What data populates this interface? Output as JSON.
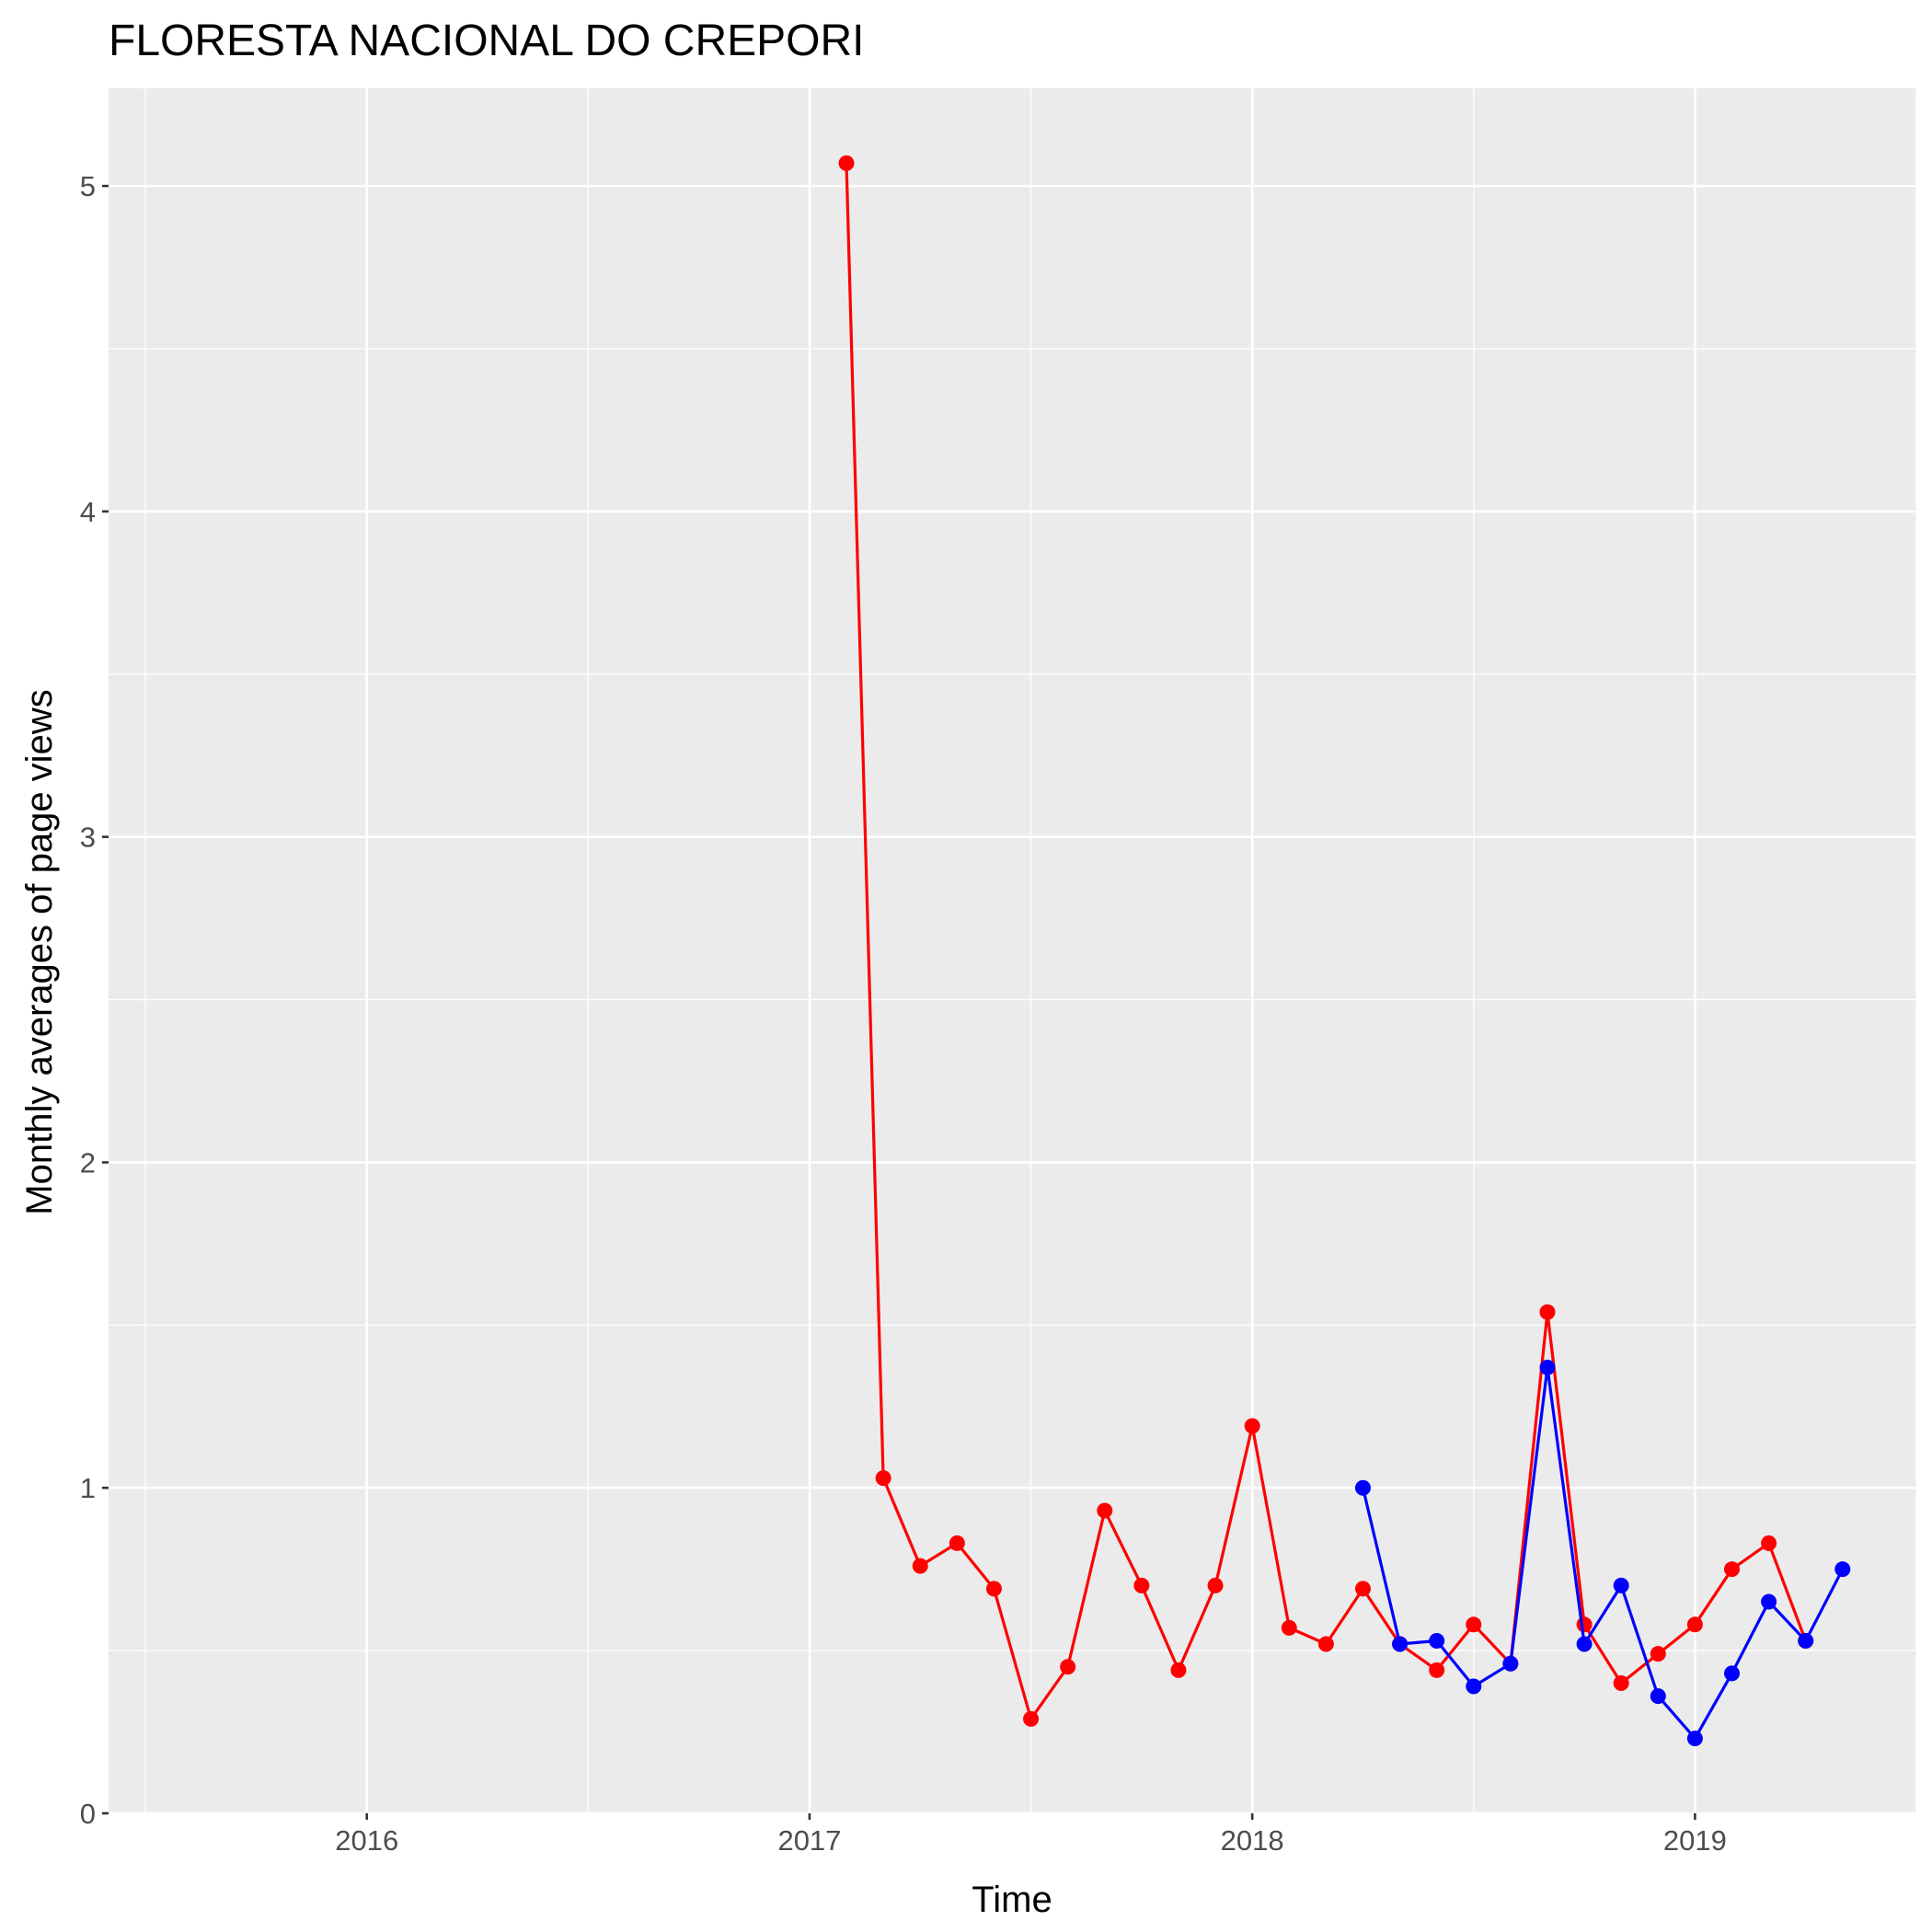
{
  "chart_data": {
    "type": "line",
    "title": "FLORESTA NACIONAL DO CREPORI",
    "xlabel": "Time",
    "ylabel": "Monthly averages of page views",
    "x_tick_labels": [
      "2016",
      "2017",
      "2018",
      "2019"
    ],
    "y_tick_labels": [
      "0",
      "1",
      "2",
      "3",
      "4",
      "5"
    ],
    "xlim": [
      "2015-06",
      "2019-07"
    ],
    "ylim": [
      0,
      5.3
    ],
    "grid": true,
    "legend": "none",
    "series": [
      {
        "color": "#ff0000",
        "points": [
          [
            "2017-02",
            5.07
          ],
          [
            "2017-03",
            1.03
          ],
          [
            "2017-04",
            0.76
          ],
          [
            "2017-05",
            0.83
          ],
          [
            "2017-06",
            0.69
          ],
          [
            "2017-07",
            0.29
          ],
          [
            "2017-08",
            0.45
          ],
          [
            "2017-09",
            0.93
          ],
          [
            "2017-10",
            0.7
          ],
          [
            "2017-11",
            0.44
          ],
          [
            "2017-12",
            0.7
          ],
          [
            "2018-01",
            1.19
          ],
          [
            "2018-02",
            0.57
          ],
          [
            "2018-03",
            0.52
          ],
          [
            "2018-04",
            0.69
          ],
          [
            "2018-05",
            0.52
          ],
          [
            "2018-06",
            0.44
          ],
          [
            "2018-07",
            0.58
          ],
          [
            "2018-08",
            0.46
          ],
          [
            "2018-09",
            1.54
          ],
          [
            "2018-10",
            0.58
          ],
          [
            "2018-11",
            0.4
          ],
          [
            "2018-12",
            0.49
          ],
          [
            "2019-01",
            0.58
          ],
          [
            "2019-02",
            0.75
          ],
          [
            "2019-03",
            0.83
          ],
          [
            "2019-04",
            0.53
          ]
        ]
      },
      {
        "color": "#0000ff",
        "points": [
          [
            "2018-04",
            1.0
          ],
          [
            "2018-05",
            0.52
          ],
          [
            "2018-06",
            0.53
          ],
          [
            "2018-07",
            0.39
          ],
          [
            "2018-08",
            0.46
          ],
          [
            "2018-09",
            1.37
          ],
          [
            "2018-10",
            0.52
          ],
          [
            "2018-11",
            0.7
          ],
          [
            "2018-12",
            0.36
          ],
          [
            "2019-01",
            0.23
          ],
          [
            "2019-02",
            0.43
          ],
          [
            "2019-03",
            0.65
          ],
          [
            "2019-04",
            0.53
          ],
          [
            "2019-05",
            0.75
          ]
        ]
      }
    ]
  }
}
